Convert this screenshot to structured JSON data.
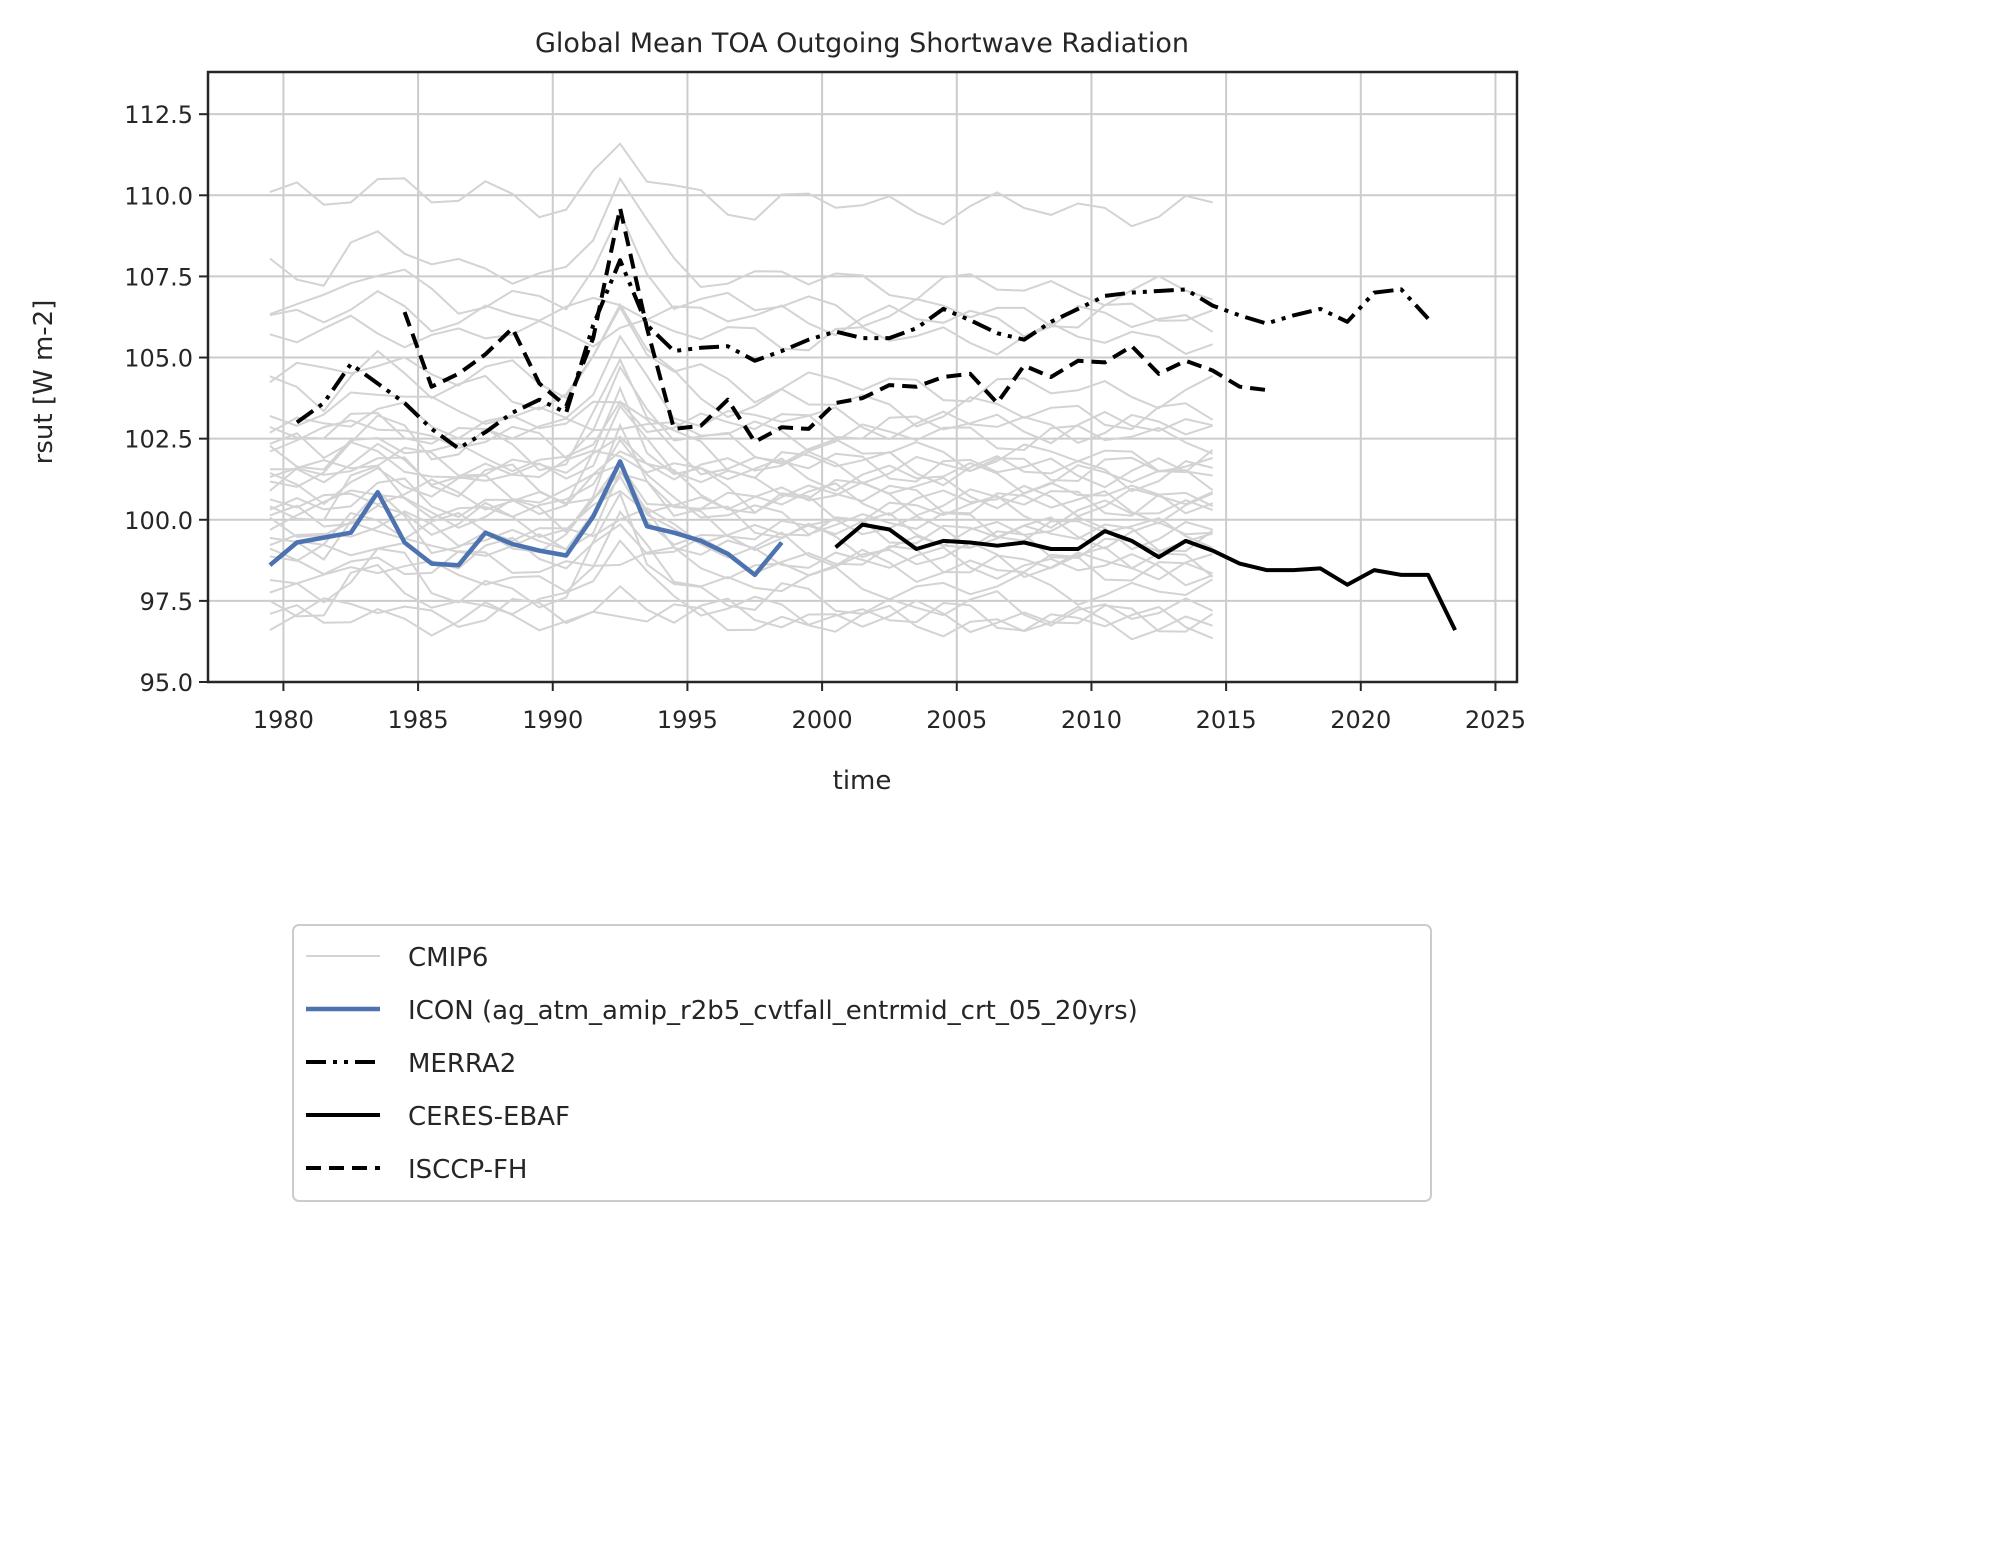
{
  "chart_data": {
    "type": "line",
    "title": "Global Mean TOA Outgoing Shortwave Radiation",
    "xlabel": "time",
    "ylabel": "rsut [W m-2]",
    "xlim": [
      1977.2,
      2025.8
    ],
    "ylim": [
      95.0,
      113.8
    ],
    "xticks": [
      1980,
      1985,
      1990,
      1995,
      2000,
      2005,
      2010,
      2015,
      2020,
      2025
    ],
    "yticks": [
      95.0,
      97.5,
      100.0,
      102.5,
      105.0,
      107.5,
      110.0,
      112.5
    ],
    "grid": true,
    "legend_position": "below plot",
    "colors": {
      "cmip6": "#d3d3d3",
      "icon": "#4c72b0",
      "obs": "#000000"
    },
    "cmip6_years": [
      1979.5,
      1980.5,
      1981.5,
      1982.5,
      1983.5,
      1984.5,
      1985.5,
      1986.5,
      1987.5,
      1988.5,
      1989.5,
      1990.5,
      1991.5,
      1992.5,
      1993.5,
      1994.5,
      1995.5,
      1996.5,
      1997.5,
      1998.5,
      1999.5,
      2000.5,
      2001.5,
      2002.5,
      2003.5,
      2004.5,
      2005.5,
      2006.5,
      2007.5,
      2008.5,
      2009.5,
      2010.5,
      2011.5,
      2012.5,
      2013.5,
      2014.5
    ],
    "cmip6_anomaly": [
      0.0,
      0.05,
      -0.1,
      0.7,
      1.1,
      0.7,
      0.0,
      -0.1,
      0.2,
      0.1,
      -0.1,
      -0.2,
      1.0,
      2.9,
      1.2,
      0.3,
      0.0,
      -0.2,
      -0.4,
      -0.2,
      -0.3,
      -0.3,
      -0.4,
      -0.4,
      -0.5,
      -0.5,
      -0.5,
      -0.5,
      -0.6,
      -0.6,
      -0.6,
      -0.6,
      -0.7,
      -0.7,
      -0.7,
      -0.7
    ],
    "series": [
      {
        "name": "CMIP6",
        "style": "thin",
        "base": [
          109.9,
          107.7,
          106.8,
          106.3,
          105.7,
          104.4,
          103.9,
          103.3,
          103.0,
          102.7,
          102.4,
          102.1,
          101.9,
          101.7,
          101.5,
          101.3,
          101.1,
          100.9,
          100.7,
          100.5,
          100.3,
          100.1,
          99.9,
          99.7,
          99.5,
          99.3,
          99.1,
          98.9,
          98.6,
          98.2,
          97.8,
          97.4,
          97.1,
          96.9
        ]
      },
      {
        "name": "ICON (ag_atm_amip_r2b5_cvtfall_entrmid_crt_05_20yrs)",
        "style": "solid-blue",
        "x": [
          1979.5,
          1980.5,
          1981.5,
          1982.5,
          1983.5,
          1984.5,
          1985.5,
          1986.5,
          1987.5,
          1988.5,
          1989.5,
          1990.5,
          1991.5,
          1992.5,
          1993.5,
          1994.5,
          1995.5,
          1996.5,
          1997.5,
          1998.5
        ],
        "y": [
          98.6,
          99.3,
          99.45,
          99.6,
          100.85,
          99.3,
          98.65,
          98.6,
          99.6,
          99.25,
          99.05,
          98.9,
          100.1,
          101.8,
          99.8,
          99.6,
          99.35,
          98.95,
          98.3,
          99.3
        ]
      },
      {
        "name": "MERRA2",
        "style": "dashdotdot",
        "x": [
          1980.5,
          1981.5,
          1982.5,
          1983.5,
          1984.5,
          1985.5,
          1986.5,
          1987.5,
          1988.5,
          1989.5,
          1990.5,
          1991.5,
          1992.5,
          1993.5,
          1994.5,
          1995.5,
          1996.5,
          1997.5,
          1998.5,
          1999.5,
          2000.5,
          2001.5,
          2002.5,
          2003.5,
          2004.5,
          2005.5,
          2006.5,
          2007.5,
          2008.5,
          2009.5,
          2010.5,
          2011.5,
          2012.5,
          2013.5,
          2014.5,
          2015.5,
          2016.5,
          2017.5,
          2018.5,
          2019.5,
          2020.5,
          2021.5,
          2022.5
        ],
        "y": [
          103.0,
          103.6,
          104.8,
          104.2,
          103.6,
          102.8,
          102.2,
          102.7,
          103.3,
          103.7,
          103.3,
          106.0,
          108.0,
          106.0,
          105.2,
          105.3,
          105.35,
          104.9,
          105.2,
          105.55,
          105.8,
          105.6,
          105.6,
          105.9,
          106.5,
          106.15,
          105.75,
          105.55,
          106.1,
          106.5,
          106.9,
          107.0,
          107.05,
          107.1,
          106.6,
          106.3,
          106.05,
          106.3,
          106.5,
          106.1,
          107.0,
          107.1,
          106.2
        ]
      },
      {
        "name": "CERES-EBAF",
        "style": "solid-black",
        "x": [
          2000.5,
          2001.5,
          2002.5,
          2003.5,
          2004.5,
          2005.5,
          2006.5,
          2007.5,
          2008.5,
          2009.5,
          2010.5,
          2011.5,
          2012.5,
          2013.5,
          2014.5,
          2015.5,
          2016.5,
          2017.5,
          2018.5,
          2019.5,
          2020.5,
          2021.5,
          2022.5,
          2023.5
        ],
        "y": [
          99.15,
          99.85,
          99.7,
          99.1,
          99.35,
          99.3,
          99.2,
          99.3,
          99.1,
          99.1,
          99.65,
          99.35,
          98.85,
          99.35,
          99.05,
          98.65,
          98.45,
          98.45,
          98.5,
          98.0,
          98.45,
          98.3,
          98.3,
          96.6
        ]
      },
      {
        "name": "ISCCP-FH",
        "style": "dashed",
        "x": [
          1984.5,
          1985.5,
          1986.5,
          1987.5,
          1988.5,
          1989.5,
          1990.5,
          1991.5,
          1992.5,
          1993.5,
          1994.5,
          1995.5,
          1996.5,
          1997.5,
          1998.5,
          1999.5,
          2000.5,
          2001.5,
          2002.5,
          2003.5,
          2004.5,
          2005.5,
          2006.5,
          2007.5,
          2008.5,
          2009.5,
          2010.5,
          2011.5,
          2012.5,
          2013.5,
          2014.5,
          2015.5,
          2016.5
        ],
        "y": [
          106.4,
          104.1,
          104.5,
          105.1,
          105.9,
          104.2,
          103.5,
          105.6,
          109.6,
          105.9,
          102.8,
          102.9,
          103.7,
          102.4,
          102.85,
          102.8,
          103.6,
          103.75,
          104.15,
          104.1,
          104.4,
          104.5,
          103.6,
          104.75,
          104.4,
          104.9,
          104.85,
          105.35,
          104.5,
          104.9,
          104.6,
          104.1,
          104.0
        ]
      }
    ]
  }
}
